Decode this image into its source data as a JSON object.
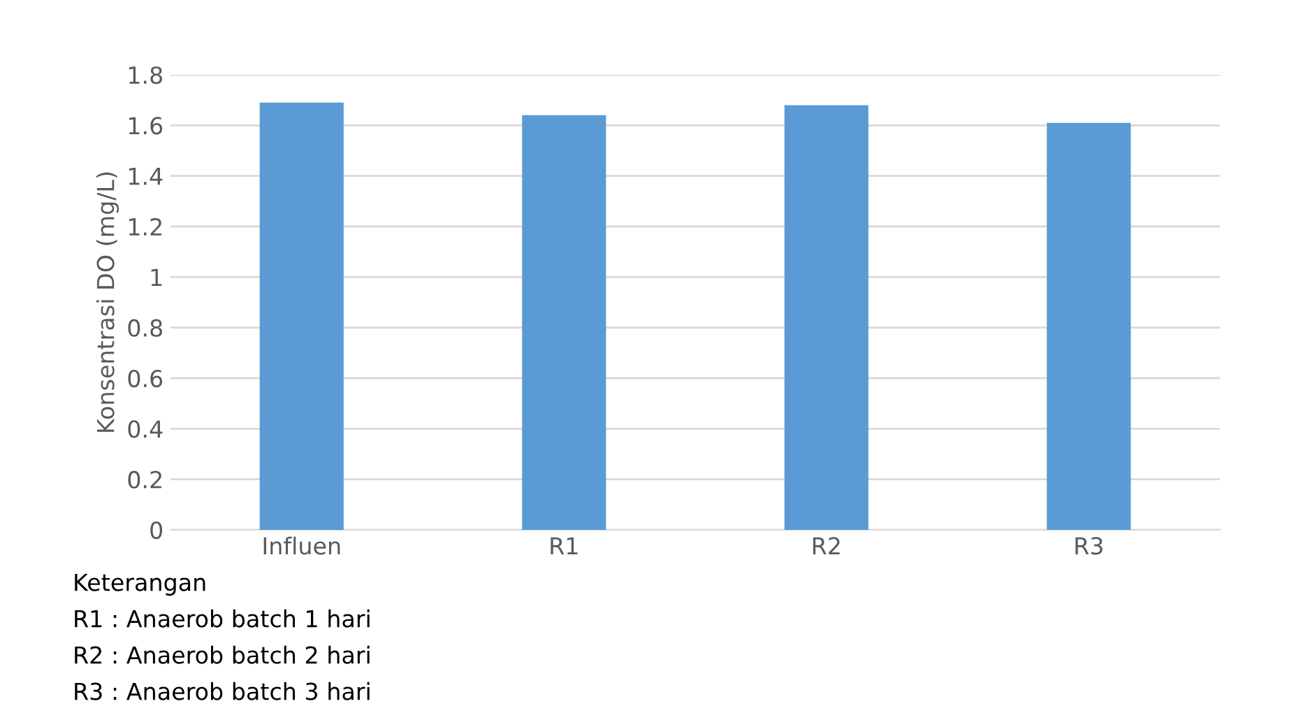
{
  "chart_data": {
    "type": "bar",
    "ylabel": "Konsentrasi DO (mg/L)",
    "categories": [
      "Influen",
      "R1",
      "R2",
      "R3"
    ],
    "values": [
      1.69,
      1.64,
      1.68,
      1.61
    ],
    "color": "#5b9bd5",
    "ylim": [
      0,
      1.8
    ],
    "yticks": [
      0,
      0.2,
      0.4,
      0.6,
      0.8,
      1,
      1.2,
      1.4,
      1.6,
      1.8
    ],
    "grid": "y",
    "annotations": [
      "Keterangan",
      "R1 : Anaerob batch 1 hari",
      "R2 : Anaerob batch 2 hari",
      "R3 : Anaerob batch 3 hari"
    ]
  }
}
